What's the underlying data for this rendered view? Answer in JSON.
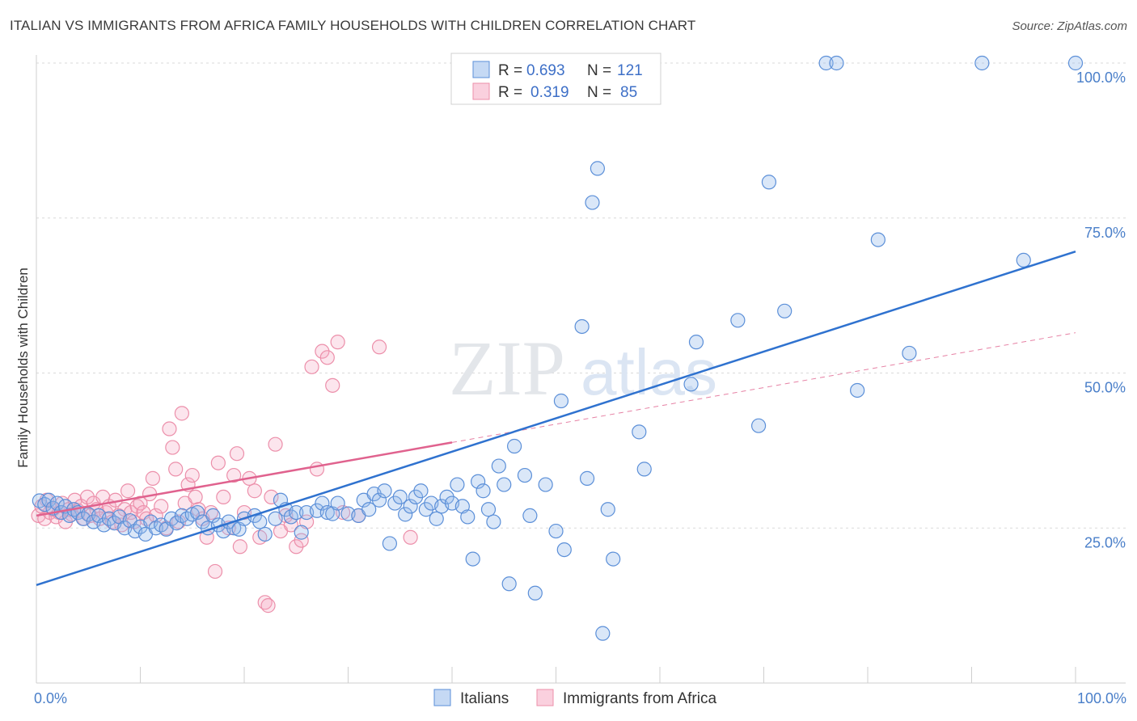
{
  "header": {
    "title": "ITALIAN VS IMMIGRANTS FROM AFRICA FAMILY HOUSEHOLDS WITH CHILDREN CORRELATION CHART",
    "source": "Source: ZipAtlas.com"
  },
  "watermark": {
    "zip": "ZIP",
    "atlas": "atlas"
  },
  "colors": {
    "italians": "#5b8fd8",
    "italians_fill": "rgba(150,185,235,0.35)",
    "italians_line": "#2f72cf",
    "africa": "#ec8faa",
    "africa_fill": "rgba(245,170,195,0.30)",
    "africa_line": "#e0628e",
    "grid": "#d9d9d9",
    "tick_text": "#4a7fc9"
  },
  "legend": {
    "rows": [
      {
        "r_label": "R =",
        "r_value": "0.693",
        "n_label": "N =",
        "n_value": "121"
      },
      {
        "r_label": "R =",
        "r_value": "0.319",
        "n_label": "N =",
        "n_value": "85"
      }
    ]
  },
  "bottom_legend": {
    "italians": "Italians",
    "africa": "Immigrants from Africa"
  },
  "chart_data": {
    "type": "scatter",
    "title": "ITALIAN VS IMMIGRANTS FROM AFRICA FAMILY HOUSEHOLDS WITH CHILDREN CORRELATION CHART",
    "xlabel": "",
    "ylabel": "Family Households with Children",
    "x_ticks": [
      "0.0%",
      "100.0%"
    ],
    "y_ticks": [
      "25.0%",
      "50.0%",
      "75.0%",
      "100.0%"
    ],
    "xlim": [
      0,
      100
    ],
    "ylim": [
      0,
      102
    ],
    "grid": true,
    "legend_position": "top-center",
    "series": [
      {
        "name": "Italians",
        "R": 0.693,
        "N": 121,
        "trend": {
          "x0": 0,
          "y0": 15.8,
          "x1": 100,
          "y1": 69.6,
          "x_end_solid": 100
        },
        "points": [
          [
            0.3,
            29.4
          ],
          [
            0.8,
            28.8
          ],
          [
            1.2,
            29.5
          ],
          [
            1.6,
            28.2
          ],
          [
            2.0,
            29.0
          ],
          [
            2.4,
            27.5
          ],
          [
            2.8,
            28.5
          ],
          [
            3.2,
            27.0
          ],
          [
            3.6,
            28.0
          ],
          [
            4.0,
            27.5
          ],
          [
            4.5,
            26.5
          ],
          [
            5.0,
            27.2
          ],
          [
            5.5,
            26.0
          ],
          [
            6.0,
            27.0
          ],
          [
            6.5,
            25.5
          ],
          [
            7.0,
            26.5
          ],
          [
            7.5,
            25.8
          ],
          [
            8.0,
            26.8
          ],
          [
            8.5,
            25.0
          ],
          [
            9.0,
            26.2
          ],
          [
            9.5,
            24.5
          ],
          [
            10.0,
            25.2
          ],
          [
            10.5,
            24.0
          ],
          [
            11.0,
            26.0
          ],
          [
            11.5,
            25.0
          ],
          [
            12.0,
            25.5
          ],
          [
            12.5,
            24.8
          ],
          [
            13.0,
            26.5
          ],
          [
            13.5,
            25.8
          ],
          [
            14.0,
            27.0
          ],
          [
            14.5,
            26.5
          ],
          [
            15.0,
            27.2
          ],
          [
            15.5,
            27.5
          ],
          [
            16.0,
            26.0
          ],
          [
            16.5,
            25.0
          ],
          [
            17.0,
            27.0
          ],
          [
            17.5,
            25.5
          ],
          [
            18.0,
            24.5
          ],
          [
            18.5,
            26.0
          ],
          [
            19.0,
            25.0
          ],
          [
            19.5,
            24.8
          ],
          [
            20.0,
            26.5
          ],
          [
            21.0,
            27.0
          ],
          [
            21.5,
            26.0
          ],
          [
            22.0,
            24.0
          ],
          [
            23.0,
            26.5
          ],
          [
            23.5,
            29.5
          ],
          [
            24.0,
            28.0
          ],
          [
            24.5,
            26.8
          ],
          [
            25.0,
            27.5
          ],
          [
            25.5,
            24.3
          ],
          [
            26.0,
            27.5
          ],
          [
            27.0,
            27.8
          ],
          [
            27.5,
            29.0
          ],
          [
            28.0,
            27.5
          ],
          [
            28.5,
            27.3
          ],
          [
            29.0,
            29.0
          ],
          [
            30.0,
            27.3
          ],
          [
            31.0,
            27.0
          ],
          [
            31.5,
            29.5
          ],
          [
            32.0,
            28.0
          ],
          [
            32.5,
            30.5
          ],
          [
            33.0,
            29.5
          ],
          [
            33.5,
            31.0
          ],
          [
            34.0,
            22.5
          ],
          [
            34.5,
            29.0
          ],
          [
            35.0,
            30.0
          ],
          [
            35.5,
            27.2
          ],
          [
            36.0,
            28.5
          ],
          [
            36.5,
            30.0
          ],
          [
            37.0,
            31.0
          ],
          [
            37.5,
            28.0
          ],
          [
            38.0,
            29.0
          ],
          [
            38.5,
            26.5
          ],
          [
            39.0,
            28.5
          ],
          [
            39.5,
            30.0
          ],
          [
            40.0,
            29.0
          ],
          [
            40.5,
            32.0
          ],
          [
            41.0,
            28.5
          ],
          [
            41.5,
            26.8
          ],
          [
            42.0,
            20.0
          ],
          [
            42.5,
            32.5
          ],
          [
            43.0,
            31.0
          ],
          [
            43.5,
            28.0
          ],
          [
            44.0,
            26.0
          ],
          [
            44.5,
            35.0
          ],
          [
            45.0,
            32.0
          ],
          [
            45.5,
            16.0
          ],
          [
            46.0,
            38.2
          ],
          [
            47.0,
            33.5
          ],
          [
            47.5,
            27.0
          ],
          [
            48.0,
            14.5
          ],
          [
            49.0,
            32.0
          ],
          [
            50.0,
            24.5
          ],
          [
            50.5,
            45.5
          ],
          [
            50.8,
            21.5
          ],
          [
            52.5,
            57.5
          ],
          [
            53.0,
            33.0
          ],
          [
            53.5,
            77.5
          ],
          [
            54.0,
            83.0
          ],
          [
            54.5,
            8.0
          ],
          [
            55.0,
            28.0
          ],
          [
            55.5,
            20.0
          ],
          [
            58.0,
            40.5
          ],
          [
            58.5,
            34.5
          ],
          [
            63.0,
            48.2
          ],
          [
            63.5,
            55.0
          ],
          [
            67.5,
            58.5
          ],
          [
            69.5,
            41.5
          ],
          [
            70.5,
            80.8
          ],
          [
            72.0,
            60.0
          ],
          [
            76.0,
            100.0
          ],
          [
            77.0,
            100.0
          ],
          [
            79.0,
            47.2
          ],
          [
            81.0,
            71.5
          ],
          [
            84.0,
            53.2
          ],
          [
            91.0,
            100.0
          ],
          [
            95.0,
            68.2
          ],
          [
            100.0,
            100.0
          ]
        ]
      },
      {
        "name": "Immigrants from Africa",
        "R": 0.319,
        "N": 85,
        "trend": {
          "x0": 0,
          "y0": 27.0,
          "x1": 100,
          "y1": 56.5,
          "x_end_solid": 40
        },
        "points": [
          [
            0.2,
            27.0
          ],
          [
            0.5,
            28.5
          ],
          [
            0.8,
            26.5
          ],
          [
            1.0,
            29.5
          ],
          [
            1.3,
            27.5
          ],
          [
            1.6,
            28.0
          ],
          [
            1.9,
            26.8
          ],
          [
            2.2,
            27.5
          ],
          [
            2.5,
            29.0
          ],
          [
            2.8,
            26.0
          ],
          [
            3.1,
            28.0
          ],
          [
            3.4,
            27.2
          ],
          [
            3.7,
            29.5
          ],
          [
            4.0,
            27.8
          ],
          [
            4.3,
            28.5
          ],
          [
            4.6,
            26.5
          ],
          [
            4.9,
            30.0
          ],
          [
            5.2,
            27.0
          ],
          [
            5.5,
            29.0
          ],
          [
            5.8,
            28.0
          ],
          [
            6.1,
            26.5
          ],
          [
            6.4,
            30.0
          ],
          [
            6.7,
            27.5
          ],
          [
            7.0,
            28.5
          ],
          [
            7.3,
            26.0
          ],
          [
            7.6,
            29.5
          ],
          [
            7.9,
            27.0
          ],
          [
            8.2,
            25.5
          ],
          [
            8.5,
            28.0
          ],
          [
            8.8,
            31.0
          ],
          [
            9.1,
            27.5
          ],
          [
            9.4,
            26.0
          ],
          [
            9.7,
            28.5
          ],
          [
            10.0,
            29.0
          ],
          [
            10.3,
            27.5
          ],
          [
            10.6,
            26.5
          ],
          [
            10.9,
            30.5
          ],
          [
            11.2,
            33.0
          ],
          [
            11.5,
            27.0
          ],
          [
            12.0,
            28.5
          ],
          [
            12.5,
            25.0
          ],
          [
            12.8,
            41.0
          ],
          [
            13.1,
            38.0
          ],
          [
            13.4,
            34.5
          ],
          [
            13.7,
            26.0
          ],
          [
            14.0,
            43.5
          ],
          [
            14.3,
            29.0
          ],
          [
            14.6,
            32.0
          ],
          [
            15.0,
            33.5
          ],
          [
            15.3,
            30.0
          ],
          [
            15.6,
            28.0
          ],
          [
            16.0,
            26.5
          ],
          [
            16.4,
            23.5
          ],
          [
            16.8,
            27.5
          ],
          [
            17.2,
            18.0
          ],
          [
            17.5,
            35.5
          ],
          [
            18.0,
            30.0
          ],
          [
            18.5,
            25.0
          ],
          [
            19.0,
            33.5
          ],
          [
            19.3,
            37.0
          ],
          [
            19.6,
            22.0
          ],
          [
            20.0,
            27.5
          ],
          [
            20.5,
            33.0
          ],
          [
            21.0,
            31.0
          ],
          [
            21.5,
            23.5
          ],
          [
            22.0,
            13.0
          ],
          [
            22.3,
            12.5
          ],
          [
            22.6,
            30.0
          ],
          [
            23.0,
            38.5
          ],
          [
            23.5,
            24.5
          ],
          [
            24.0,
            27.0
          ],
          [
            24.5,
            25.5
          ],
          [
            25.0,
            22.0
          ],
          [
            25.5,
            23.0
          ],
          [
            26.0,
            26.0
          ],
          [
            26.5,
            51.0
          ],
          [
            27.0,
            34.5
          ],
          [
            27.5,
            53.5
          ],
          [
            28.0,
            52.5
          ],
          [
            28.5,
            48.0
          ],
          [
            29.0,
            55.0
          ],
          [
            29.5,
            27.5
          ],
          [
            31.0,
            27.0
          ],
          [
            33.0,
            54.2
          ],
          [
            36.0,
            23.5
          ]
        ]
      }
    ]
  }
}
